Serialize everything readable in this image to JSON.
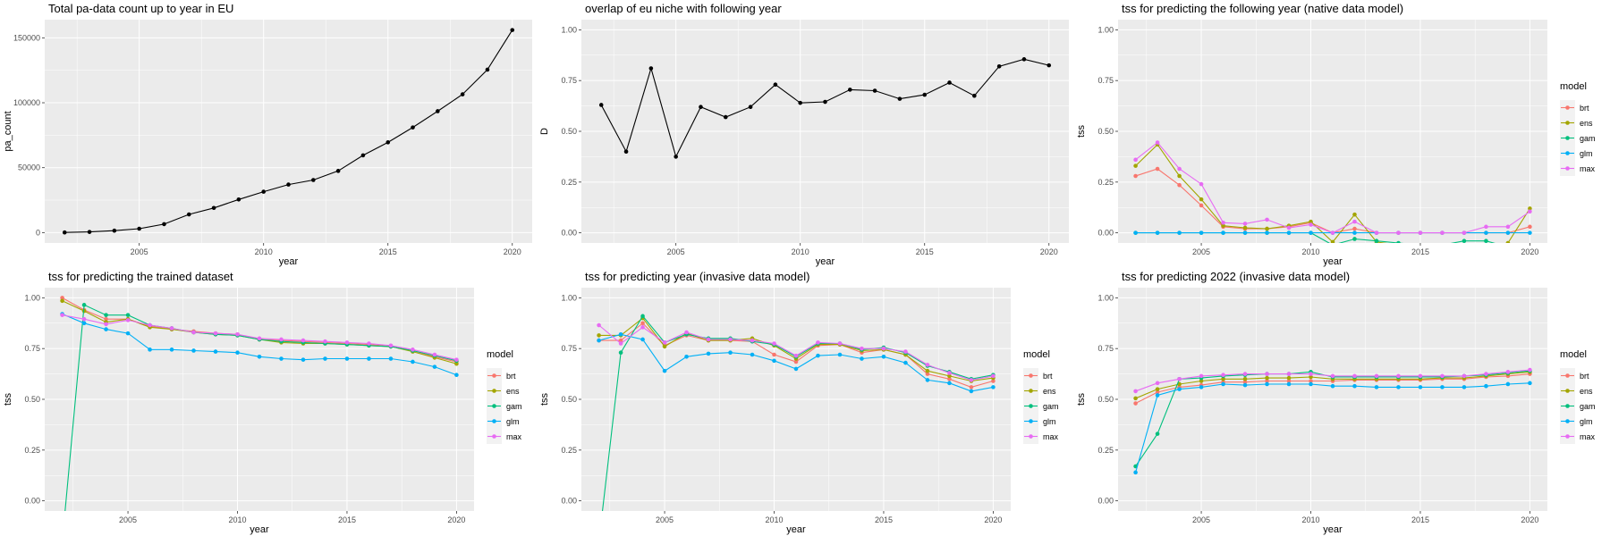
{
  "chart_data": [
    {
      "id": "p1",
      "type": "line",
      "title": "Total pa-data count up to year in EU",
      "xlabel": "year",
      "ylabel": "pa_count",
      "xlim": [
        2001.2,
        2020.8
      ],
      "ylim": [
        -8000,
        164000
      ],
      "xticks": [
        2005,
        2010,
        2015,
        2020
      ],
      "yticks": [
        0,
        50000,
        100000,
        150000
      ],
      "yticklabels": [
        "0",
        "50000",
        "100000",
        "150000"
      ],
      "legend": null,
      "x": [
        2002,
        2003,
        2004,
        2005,
        2006,
        2007,
        2008,
        2009,
        2010,
        2011,
        2012,
        2013,
        2014,
        2015,
        2016,
        2017,
        2018,
        2019,
        2020
      ],
      "series": [
        {
          "color": "#000000",
          "values": [
            100,
            500,
            1500,
            3000,
            6500,
            14000,
            19000,
            25500,
            31500,
            37000,
            40500,
            47500,
            59500,
            69500,
            81000,
            93500,
            106500,
            125500,
            156000
          ]
        }
      ]
    },
    {
      "id": "p2",
      "type": "line",
      "title": "overlap of eu niche with following year",
      "xlabel": "year",
      "ylabel": "D",
      "xlim": [
        2001.2,
        2020.8
      ],
      "ylim": [
        -0.05,
        1.05
      ],
      "xticks": [
        2005,
        2010,
        2015,
        2020
      ],
      "yticks": [
        0,
        0.25,
        0.5,
        0.75,
        1
      ],
      "yticklabels": [
        "0.00",
        "0.25",
        "0.50",
        "0.75",
        "1.00"
      ],
      "legend": null,
      "x": [
        2002,
        2003,
        2004,
        2005,
        2006,
        2007,
        2008,
        2009,
        2010,
        2011,
        2012,
        2013,
        2014,
        2015,
        2016,
        2017,
        2018,
        2019,
        2020
      ],
      "series": [
        {
          "color": "#000000",
          "values": [
            0.63,
            0.4,
            0.81,
            0.375,
            0.62,
            0.57,
            0.62,
            0.73,
            0.64,
            0.645,
            0.705,
            0.7,
            0.66,
            0.68,
            0.74,
            0.675,
            0.82,
            0.855,
            0.825
          ]
        }
      ]
    },
    {
      "id": "p3",
      "type": "line",
      "title": "tss for predicting the following year (native data model)",
      "xlabel": "year",
      "ylabel": "tss",
      "xlim": [
        2001.2,
        2020.8
      ],
      "ylim": [
        -0.05,
        1.05
      ],
      "xticks": [
        2005,
        2010,
        2015,
        2020
      ],
      "yticks": [
        0,
        0.25,
        0.5,
        0.75,
        1
      ],
      "yticklabels": [
        "0.00",
        "0.25",
        "0.50",
        "0.75",
        "1.00"
      ],
      "legend": {
        "title": "model",
        "position": "right"
      },
      "x": [
        2002,
        2003,
        2004,
        2005,
        2006,
        2007,
        2008,
        2009,
        2010,
        2011,
        2012,
        2013,
        2014,
        2015,
        2016,
        2017,
        2018,
        2019,
        2020
      ],
      "series": [
        {
          "name": "brt",
          "color": "#F8766D",
          "values": [
            0.28,
            0.315,
            0.235,
            0.135,
            0.03,
            0.02,
            0.02,
            0.03,
            0.05,
            0.0,
            0.02,
            0.0,
            0.0,
            0.0,
            0.0,
            0.0,
            0.0,
            0.0,
            0.03
          ]
        },
        {
          "name": "ens",
          "color": "#A3A500",
          "values": [
            0.33,
            0.435,
            0.28,
            0.165,
            0.035,
            0.025,
            0.02,
            0.035,
            0.055,
            -0.045,
            0.09,
            -0.045,
            -0.06,
            -0.07,
            -0.07,
            -0.07,
            -0.07,
            -0.05,
            0.12
          ]
        },
        {
          "name": "gam",
          "color": "#00BF7D",
          "values": [
            0.0,
            0.0,
            0.0,
            0.0,
            0.0,
            0.0,
            0.0,
            0.0,
            0.0,
            -0.06,
            -0.03,
            -0.04,
            -0.05,
            -0.06,
            -0.06,
            -0.04,
            -0.04,
            -0.07,
            -0.08
          ]
        },
        {
          "name": "glm",
          "color": "#00B0F6",
          "values": [
            0.0,
            0.0,
            0.0,
            0.0,
            0.0,
            0.0,
            0.0,
            0.0,
            0.0,
            0.0,
            0.0,
            0.0,
            0.0,
            0.0,
            0.0,
            0.0,
            0.0,
            0.0,
            0.0
          ]
        },
        {
          "name": "max",
          "color": "#E76BF3",
          "values": [
            0.36,
            0.445,
            0.315,
            0.24,
            0.05,
            0.045,
            0.065,
            0.025,
            0.04,
            0.0,
            0.055,
            0.0,
            0.0,
            0.0,
            0.0,
            0.0,
            0.03,
            0.03,
            0.105
          ]
        }
      ]
    },
    {
      "id": "p4",
      "type": "line",
      "title": "tss for predicting the trained dataset",
      "xlabel": "year",
      "ylabel": "tss",
      "xlim": [
        2001.2,
        2020.8
      ],
      "ylim": [
        -0.05,
        1.05
      ],
      "xticks": [
        2005,
        2010,
        2015,
        2020
      ],
      "yticks": [
        0,
        0.25,
        0.5,
        0.75,
        1
      ],
      "yticklabels": [
        "0.00",
        "0.25",
        "0.50",
        "0.75",
        "1.00"
      ],
      "legend": {
        "title": "model",
        "position": "right"
      },
      "x": [
        2002,
        2003,
        2004,
        2005,
        2006,
        2007,
        2008,
        2009,
        2010,
        2011,
        2012,
        2013,
        2014,
        2015,
        2016,
        2017,
        2018,
        2019,
        2020
      ],
      "series": [
        {
          "name": "brt",
          "color": "#F8766D",
          "values": [
            1.0,
            0.94,
            0.895,
            0.895,
            0.86,
            0.845,
            0.835,
            0.825,
            0.82,
            0.795,
            0.79,
            0.785,
            0.78,
            0.775,
            0.77,
            0.76,
            0.74,
            0.71,
            0.685
          ]
        },
        {
          "name": "ens",
          "color": "#A3A500",
          "values": [
            0.985,
            0.935,
            0.88,
            0.895,
            0.855,
            0.845,
            0.83,
            0.82,
            0.815,
            0.795,
            0.78,
            0.775,
            0.775,
            0.77,
            0.765,
            0.76,
            0.735,
            0.705,
            0.675
          ]
        },
        {
          "name": "gam",
          "color": "#00BF7D",
          "values": [
            -0.2,
            0.965,
            0.915,
            0.915,
            0.865,
            0.85,
            0.83,
            0.82,
            0.815,
            0.795,
            0.785,
            0.78,
            0.775,
            0.77,
            0.765,
            0.76,
            0.74,
            0.715,
            0.69
          ]
        },
        {
          "name": "glm",
          "color": "#00B0F6",
          "values": [
            0.92,
            0.875,
            0.845,
            0.825,
            0.745,
            0.745,
            0.74,
            0.735,
            0.73,
            0.71,
            0.7,
            0.695,
            0.7,
            0.7,
            0.7,
            0.7,
            0.685,
            0.66,
            0.62
          ]
        },
        {
          "name": "max",
          "color": "#E76BF3",
          "values": [
            0.915,
            0.895,
            0.87,
            0.89,
            0.865,
            0.85,
            0.83,
            0.825,
            0.82,
            0.8,
            0.795,
            0.79,
            0.785,
            0.78,
            0.775,
            0.765,
            0.745,
            0.72,
            0.695
          ]
        }
      ]
    },
    {
      "id": "p5",
      "type": "line",
      "title": "tss for predicting year (invasive data model)",
      "xlabel": "year",
      "ylabel": "tss",
      "xlim": [
        2001.2,
        2020.8
      ],
      "ylim": [
        -0.05,
        1.05
      ],
      "xticks": [
        2005,
        2010,
        2015,
        2020
      ],
      "yticks": [
        0,
        0.25,
        0.5,
        0.75,
        1
      ],
      "yticklabels": [
        "0.00",
        "0.25",
        "0.50",
        "0.75",
        "1.00"
      ],
      "legend": {
        "title": "model",
        "position": "right"
      },
      "x": [
        2002,
        2003,
        2004,
        2005,
        2006,
        2007,
        2008,
        2009,
        2010,
        2011,
        2012,
        2013,
        2014,
        2015,
        2016,
        2017,
        2018,
        2019,
        2020
      ],
      "series": [
        {
          "name": "brt",
          "color": "#F8766D",
          "values": [
            0.79,
            0.79,
            0.875,
            0.765,
            0.815,
            0.79,
            0.79,
            0.785,
            0.72,
            0.685,
            0.765,
            0.77,
            0.73,
            0.745,
            0.72,
            0.625,
            0.6,
            0.56,
            0.59
          ]
        },
        {
          "name": "ens",
          "color": "#A3A500",
          "values": [
            0.815,
            0.815,
            0.9,
            0.76,
            0.825,
            0.79,
            0.79,
            0.8,
            0.765,
            0.7,
            0.77,
            0.77,
            0.74,
            0.745,
            0.72,
            0.64,
            0.615,
            0.59,
            0.605
          ]
        },
        {
          "name": "gam",
          "color": "#00BF7D",
          "values": [
            -0.2,
            0.73,
            0.91,
            0.78,
            0.82,
            0.8,
            0.8,
            0.785,
            0.77,
            0.71,
            0.775,
            0.775,
            0.745,
            0.755,
            0.73,
            0.665,
            0.635,
            0.6,
            0.62
          ]
        },
        {
          "name": "glm",
          "color": "#00B0F6",
          "values": [
            0.79,
            0.82,
            0.795,
            0.64,
            0.71,
            0.725,
            0.73,
            0.72,
            0.69,
            0.65,
            0.715,
            0.72,
            0.7,
            0.71,
            0.68,
            0.595,
            0.58,
            0.54,
            0.56
          ]
        },
        {
          "name": "max",
          "color": "#E76BF3",
          "values": [
            0.865,
            0.775,
            0.855,
            0.78,
            0.83,
            0.795,
            0.795,
            0.79,
            0.775,
            0.715,
            0.78,
            0.775,
            0.75,
            0.75,
            0.735,
            0.67,
            0.63,
            0.595,
            0.615
          ]
        }
      ]
    },
    {
      "id": "p6",
      "type": "line",
      "title": "tss for predicting 2022 (invasive data model)",
      "xlabel": "year",
      "ylabel": "tss",
      "xlim": [
        2001.2,
        2020.8
      ],
      "ylim": [
        -0.05,
        1.05
      ],
      "xticks": [
        2005,
        2010,
        2015,
        2020
      ],
      "yticks": [
        0,
        0.25,
        0.5,
        0.75,
        1
      ],
      "yticklabels": [
        "0.00",
        "0.25",
        "0.50",
        "0.75",
        "1.00"
      ],
      "legend": {
        "title": "model",
        "position": "right"
      },
      "x": [
        2002,
        2003,
        2004,
        2005,
        2006,
        2007,
        2008,
        2009,
        2010,
        2011,
        2012,
        2013,
        2014,
        2015,
        2016,
        2017,
        2018,
        2019,
        2020
      ],
      "series": [
        {
          "name": "brt",
          "color": "#F8766D",
          "values": [
            0.48,
            0.535,
            0.56,
            0.57,
            0.585,
            0.585,
            0.59,
            0.59,
            0.59,
            0.59,
            0.595,
            0.595,
            0.595,
            0.595,
            0.6,
            0.6,
            0.61,
            0.615,
            0.625
          ]
        },
        {
          "name": "ens",
          "color": "#A3A500",
          "values": [
            0.505,
            0.55,
            0.575,
            0.59,
            0.6,
            0.6,
            0.605,
            0.605,
            0.61,
            0.6,
            0.6,
            0.6,
            0.6,
            0.6,
            0.605,
            0.605,
            0.615,
            0.625,
            0.635
          ]
        },
        {
          "name": "gam",
          "color": "#00BF7D",
          "values": [
            0.17,
            0.33,
            0.6,
            0.605,
            0.615,
            0.62,
            0.625,
            0.625,
            0.635,
            0.61,
            0.61,
            0.61,
            0.61,
            0.61,
            0.61,
            0.615,
            0.62,
            0.63,
            0.64
          ]
        },
        {
          "name": "glm",
          "color": "#00B0F6",
          "values": [
            0.14,
            0.52,
            0.55,
            0.56,
            0.575,
            0.57,
            0.575,
            0.575,
            0.575,
            0.565,
            0.565,
            0.56,
            0.56,
            0.56,
            0.56,
            0.56,
            0.565,
            0.575,
            0.58
          ]
        },
        {
          "name": "max",
          "color": "#E76BF3",
          "values": [
            0.54,
            0.58,
            0.6,
            0.615,
            0.62,
            0.625,
            0.625,
            0.625,
            0.625,
            0.615,
            0.615,
            0.615,
            0.615,
            0.615,
            0.615,
            0.615,
            0.625,
            0.635,
            0.645
          ]
        }
      ]
    }
  ]
}
